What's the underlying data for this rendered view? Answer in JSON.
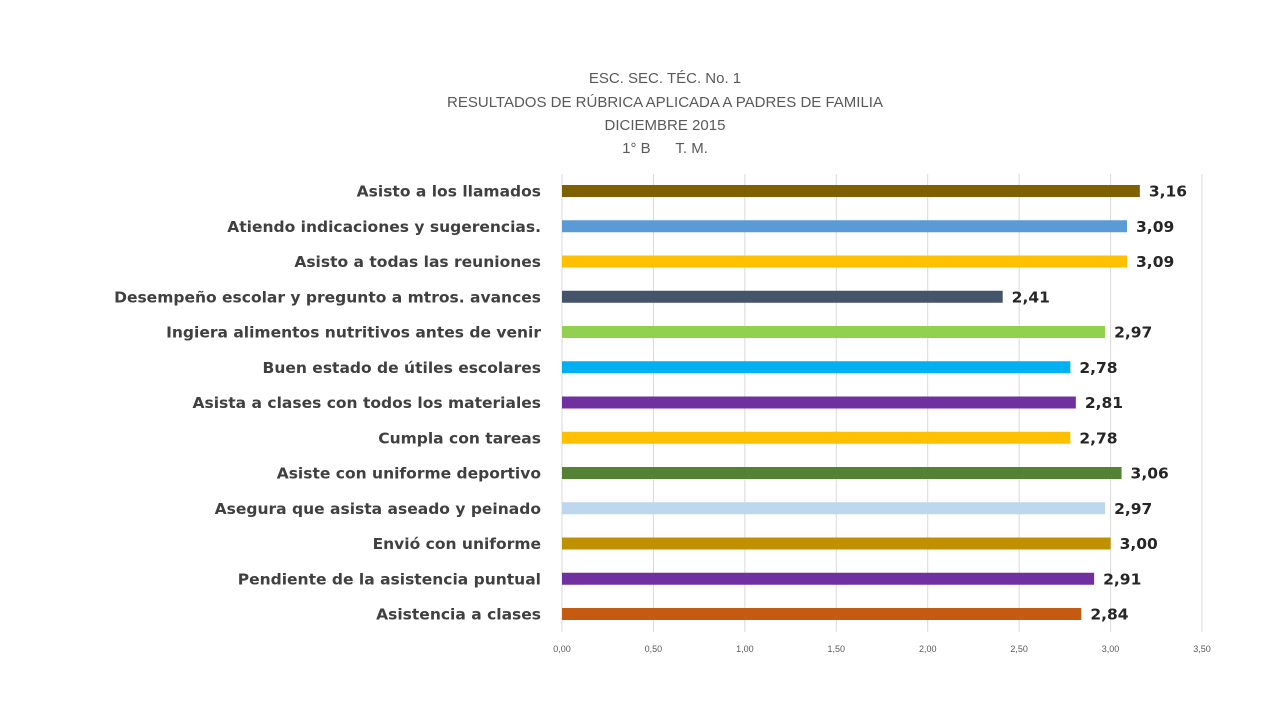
{
  "chart_data": {
    "type": "bar",
    "orientation": "horizontal",
    "title_lines": [
      "ESC. SEC. TÉC. No. 1",
      "RESULTADOS DE RÚBRICA APLICADA A PADRES DE FAMILIA",
      "DICIEMBRE 2015",
      "1° B      T. M."
    ],
    "categories": [
      "Asisto a los llamados",
      "Atiendo indicaciones y sugerencias.",
      "Asisto a todas las reuniones",
      "Desempeño escolar y pregunto a mtros. avances",
      "Ingiera alimentos nutritivos antes de venir",
      "Buen estado de útiles escolares",
      "Asista a clases con todos los materiales",
      "Cumpla con tareas",
      "Asiste con uniforme deportivo",
      "Asegura que asista aseado y peinado",
      "Envió con uniforme",
      "Pendiente de la asistencia puntual",
      "Asistencia a clases"
    ],
    "values": [
      3.16,
      3.09,
      3.09,
      2.41,
      2.97,
      2.78,
      2.81,
      2.78,
      3.06,
      2.97,
      3.0,
      2.91,
      2.84
    ],
    "value_labels": [
      "3,16",
      "3,09",
      "3,09",
      "2,41",
      "2,97",
      "2,78",
      "2,81",
      "2,78",
      "3,06",
      "2,97",
      "3,00",
      "2,91",
      "2,84"
    ],
    "colors": [
      "#7f6000",
      "#5b9bd5",
      "#ffc000",
      "#44546a",
      "#92d050",
      "#00b0f0",
      "#7030a0",
      "#ffc000",
      "#548235",
      "#bdd7ee",
      "#bf9000",
      "#7030a0",
      "#c55a11"
    ],
    "xlim": [
      0,
      3.5
    ],
    "ticks": [
      0,
      0.5,
      1.0,
      1.5,
      2.0,
      2.5,
      3.0,
      3.5
    ],
    "tick_labels": [
      "0,00",
      "0,50",
      "1,00",
      "1,50",
      "2,00",
      "2,50",
      "3,00",
      "3,50"
    ],
    "grid": true,
    "legend": "none",
    "xlabel": "",
    "ylabel": ""
  }
}
